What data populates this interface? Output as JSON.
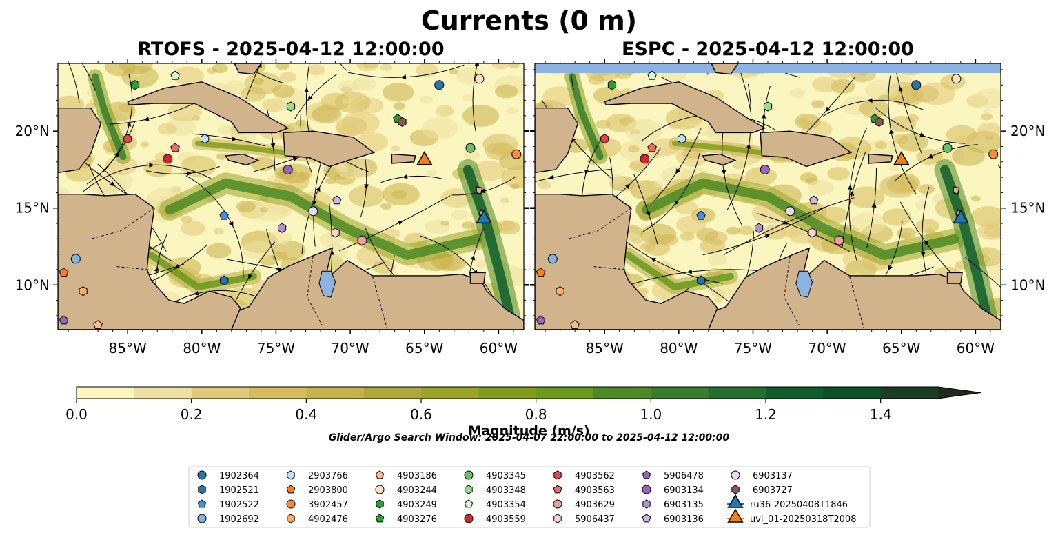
{
  "figure": {
    "title": "Currents (0 m)"
  },
  "colors": {
    "land": "#d2b48c",
    "lake": "#8db3e2",
    "cmap": [
      "#fbf5bf",
      "#ede0a0",
      "#e1c97a",
      "#d6bc5f",
      "#c8b14d",
      "#b0a83c",
      "#9aa428",
      "#829d1e",
      "#6a9a1b",
      "#4c8a25",
      "#3a7d2c",
      "#246f2f",
      "#0f5e2b",
      "#0d4f27",
      "#193d25",
      "#1c2b1c"
    ]
  },
  "chart_data": [
    {
      "type": "heatmap",
      "title": "RTOFS - 2025-04-12 12:00:00",
      "quantity": "Surface current magnitude with streamlines",
      "x_ticks": [
        "85°W",
        "80°W",
        "75°W",
        "70°W",
        "65°W",
        "60°W"
      ],
      "y_ticks": [
        "20°N",
        "15°N",
        "10°N"
      ],
      "xlim": [
        -89.7,
        -58.3
      ],
      "ylim": [
        7.1,
        24.4
      ]
    },
    {
      "type": "heatmap",
      "title": "ESPC - 2025-04-12 12:00:00",
      "quantity": "Surface current magnitude with streamlines",
      "x_ticks": [
        "85°W",
        "80°W",
        "75°W",
        "70°W",
        "65°W",
        "60°W"
      ],
      "y_ticks": [
        "20°N",
        "15°N",
        "10°N"
      ],
      "xlim": [
        -89.7,
        -58.3
      ],
      "ylim": [
        7.1,
        24.4
      ]
    }
  ],
  "colorbar": {
    "label": "Magnitude (m/s)",
    "ticks": [
      "0.0",
      "0.2",
      "0.4",
      "0.6",
      "0.8",
      "1.0",
      "1.2",
      "1.4"
    ],
    "range": [
      0,
      1.5
    ],
    "extend": "max"
  },
  "search_window": "Glider/Argo Search Window: 2025-04-07 22:00:00 to 2025-04-12 12:00:00",
  "legend": {
    "placement": "bottom-center",
    "columns": 7,
    "entries": [
      {
        "label": "1902364",
        "marker": "circle",
        "color": "#1f77b4"
      },
      {
        "label": "1902521",
        "marker": "hexagon",
        "color": "#1f77b4"
      },
      {
        "label": "1902522",
        "marker": "pentagon",
        "color": "#4a90d9"
      },
      {
        "label": "1902692",
        "marker": "circle",
        "color": "#7fb3e0"
      },
      {
        "label": "2903766",
        "marker": "hexagon",
        "color": "#bfe0fb"
      },
      {
        "label": "2903800",
        "marker": "pentagon",
        "color": "#ff7f0e"
      },
      {
        "label": "3902457",
        "marker": "circle",
        "color": "#ff8c30"
      },
      {
        "label": "4902476",
        "marker": "hexagon",
        "color": "#ffad66"
      },
      {
        "label": "4903186",
        "marker": "pentagon",
        "color": "#ffbb88"
      },
      {
        "label": "4903244",
        "marker": "circle",
        "color": "#ffe0c0"
      },
      {
        "label": "4903249",
        "marker": "hexagon",
        "color": "#2ca02c"
      },
      {
        "label": "4903276",
        "marker": "pentagon",
        "color": "#2ca02c"
      },
      {
        "label": "4903345",
        "marker": "circle",
        "color": "#66c266"
      },
      {
        "label": "4903348",
        "marker": "hexagon",
        "color": "#98df8a"
      },
      {
        "label": "4903354",
        "marker": "pentagon",
        "color": "#d8f8cf"
      },
      {
        "label": "4903559",
        "marker": "circle",
        "color": "#d62728"
      },
      {
        "label": "4903562",
        "marker": "hexagon",
        "color": "#e04748"
      },
      {
        "label": "4903563",
        "marker": "pentagon",
        "color": "#ef6a6a"
      },
      {
        "label": "4903629",
        "marker": "circle",
        "color": "#f59b9b"
      },
      {
        "label": "5906437",
        "marker": "hexagon",
        "color": "#fcd3d3"
      },
      {
        "label": "5906478",
        "marker": "pentagon",
        "color": "#9467bd"
      },
      {
        "label": "6903134",
        "marker": "circle",
        "color": "#9467bd"
      },
      {
        "label": "6903135",
        "marker": "hexagon",
        "color": "#b48fd6"
      },
      {
        "label": "6903136",
        "marker": "pentagon",
        "color": "#cfb5ea"
      },
      {
        "label": "6903137",
        "marker": "circle",
        "color": "#ead9f8"
      },
      {
        "label": "6903727",
        "marker": "hexagon",
        "color": "#8c564b"
      },
      {
        "label": "ru36-20250408T1846",
        "marker": "triangle-line",
        "color": "#1f77b4"
      },
      {
        "label": "uvi_01-20250318T2008",
        "marker": "triangle-line",
        "color": "#ff7f0e"
      }
    ]
  },
  "floats": [
    {
      "id": "1902364",
      "lon": -64,
      "lat": 23
    },
    {
      "id": "1902521",
      "lon": -78.5,
      "lat": 10.3
    },
    {
      "id": "1902522",
      "lon": -78.5,
      "lat": 14.5
    },
    {
      "id": "1902692",
      "lon": -88.5,
      "lat": 11.7
    },
    {
      "id": "2903766",
      "lon": -79.8,
      "lat": 19.5
    },
    {
      "id": "2903800",
      "lon": -89.3,
      "lat": 10.8
    },
    {
      "id": "3902457",
      "lon": -58.8,
      "lat": 18.5
    },
    {
      "id": "4902476",
      "lon": -88,
      "lat": 9.6
    },
    {
      "id": "4903186",
      "lon": -87,
      "lat": 7.4
    },
    {
      "id": "4903244",
      "lon": -61.3,
      "lat": 23.4
    },
    {
      "id": "4903249",
      "lon": -84.5,
      "lat": 23
    },
    {
      "id": "4903276",
      "lon": -66.8,
      "lat": 20.8
    },
    {
      "id": "4903345",
      "lon": -61.9,
      "lat": 18.9
    },
    {
      "id": "4903348",
      "lon": -74,
      "lat": 21.6
    },
    {
      "id": "4903354",
      "lon": -81.8,
      "lat": 23.6
    },
    {
      "id": "4903559",
      "lon": -82.3,
      "lat": 18.2
    },
    {
      "id": "4903562",
      "lon": -85,
      "lat": 19.5
    },
    {
      "id": "4903563",
      "lon": -81.8,
      "lat": 18.9
    },
    {
      "id": "4903629",
      "lon": -69.2,
      "lat": 12.9
    },
    {
      "id": "5906437",
      "lon": -71,
      "lat": 13.4
    },
    {
      "id": "5906478",
      "lon": -89.3,
      "lat": 7.7
    },
    {
      "id": "6903134",
      "lon": -74.2,
      "lat": 17.5
    },
    {
      "id": "6903135",
      "lon": -74.6,
      "lat": 13.7
    },
    {
      "id": "6903136",
      "lon": -70.9,
      "lat": 15.5
    },
    {
      "id": "6903137",
      "lon": -72.5,
      "lat": 14.8
    },
    {
      "id": "6903727",
      "lon": -66.5,
      "lat": 20.6
    }
  ],
  "gliders": [
    {
      "id": "ru36-20250408T1846",
      "lon": -61,
      "lat": 14.3
    },
    {
      "id": "uvi_01-20250318T2008",
      "lon": -65,
      "lat": 18.1
    }
  ]
}
